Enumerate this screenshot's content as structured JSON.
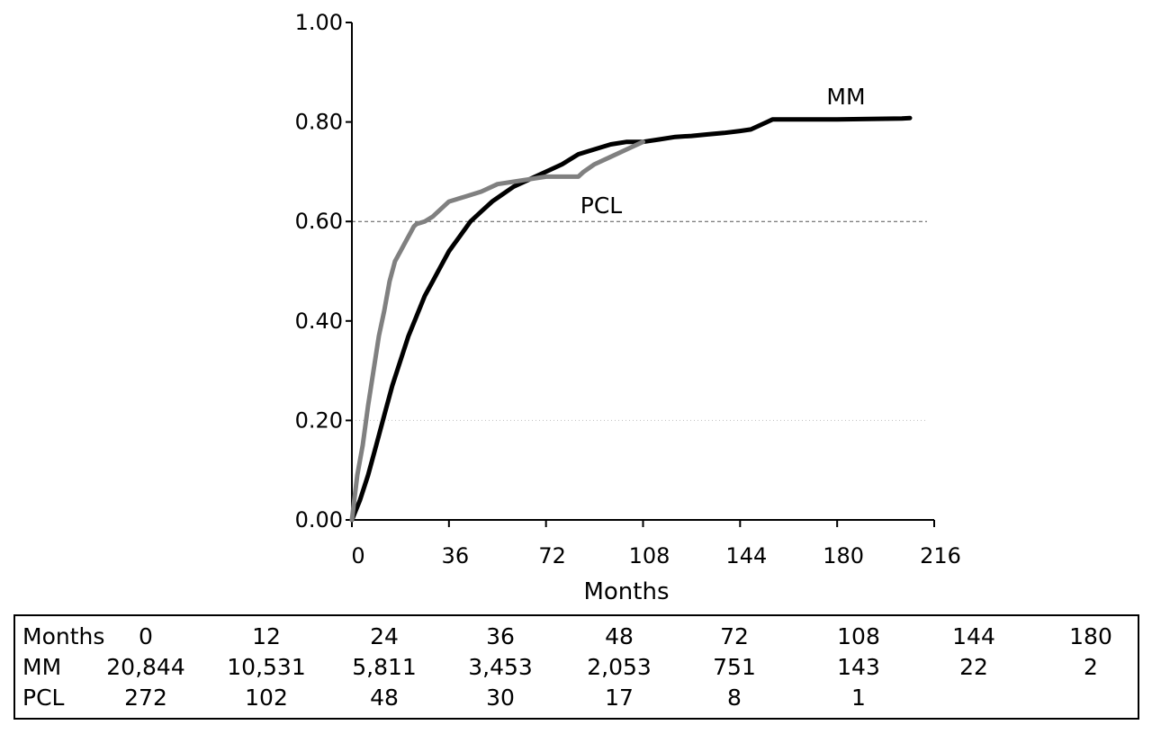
{
  "chart_data": {
    "type": "line",
    "title": "",
    "xlabel": "Months",
    "ylabel": "",
    "xlim": [
      0,
      216
    ],
    "ylim": [
      0,
      1.0
    ],
    "x_ticks": [
      0,
      36,
      72,
      108,
      144,
      180,
      216
    ],
    "x_tick_labels": [
      "0",
      "36",
      "72",
      "108",
      "144",
      "180",
      "216"
    ],
    "y_ticks": [
      0,
      0.2,
      0.4,
      0.6,
      0.8,
      1.0
    ],
    "y_tick_labels": [
      "0.00",
      "0.20",
      "0.40",
      "0.60",
      "0.80",
      "1.00"
    ],
    "reference_lines": [
      {
        "y": 0.6,
        "style": "dashed"
      },
      {
        "y": 0.2,
        "style": "dotted"
      },
      {
        "y": 0.0,
        "style": "dashed"
      }
    ],
    "series": [
      {
        "name": "MM",
        "color": "#000000",
        "x": [
          0,
          3,
          6,
          9,
          12,
          15,
          18,
          21,
          24,
          27,
          30,
          33,
          36,
          40,
          44,
          48,
          52,
          56,
          60,
          66,
          72,
          78,
          84,
          90,
          96,
          102,
          108,
          114,
          120,
          126,
          132,
          138,
          144,
          148,
          150,
          154,
          156,
          160,
          168,
          180,
          192,
          204,
          207
        ],
        "y": [
          0.0,
          0.04,
          0.09,
          0.15,
          0.21,
          0.27,
          0.32,
          0.37,
          0.41,
          0.45,
          0.48,
          0.51,
          0.54,
          0.57,
          0.6,
          0.62,
          0.64,
          0.655,
          0.67,
          0.685,
          0.7,
          0.715,
          0.735,
          0.745,
          0.755,
          0.76,
          0.76,
          0.765,
          0.77,
          0.772,
          0.775,
          0.778,
          0.782,
          0.785,
          0.79,
          0.8,
          0.805,
          0.805,
          0.805,
          0.805,
          0.806,
          0.807,
          0.808
        ]
      },
      {
        "name": "PCL",
        "color": "#808080",
        "x": [
          0,
          2,
          4,
          6,
          8,
          10,
          12,
          14,
          16,
          18,
          20,
          22,
          23,
          24,
          27,
          30,
          36,
          42,
          48,
          54,
          60,
          66,
          72,
          78,
          84,
          86,
          90,
          96,
          102,
          108
        ],
        "y": [
          0.0,
          0.09,
          0.15,
          0.23,
          0.3,
          0.37,
          0.42,
          0.48,
          0.52,
          0.54,
          0.56,
          0.58,
          0.59,
          0.595,
          0.6,
          0.61,
          0.64,
          0.65,
          0.66,
          0.675,
          0.68,
          0.685,
          0.69,
          0.69,
          0.69,
          0.7,
          0.715,
          0.73,
          0.745,
          0.76
        ]
      }
    ]
  },
  "series_labels": {
    "mm": "MM",
    "pcl": "PCL"
  },
  "risk_table": {
    "header": {
      "label": "Months",
      "values": [
        "0",
        "12",
        "24",
        "36",
        "48",
        "72",
        "108",
        "144",
        "180"
      ]
    },
    "rows": [
      {
        "label": "MM",
        "values": [
          "20,844",
          "10,531",
          "5,811",
          "3,453",
          "2,053",
          "751",
          "143",
          "22",
          "2"
        ]
      },
      {
        "label": "PCL",
        "values": [
          "272",
          "102",
          "48",
          "30",
          "17",
          "8",
          "1",
          "",
          ""
        ]
      }
    ]
  }
}
